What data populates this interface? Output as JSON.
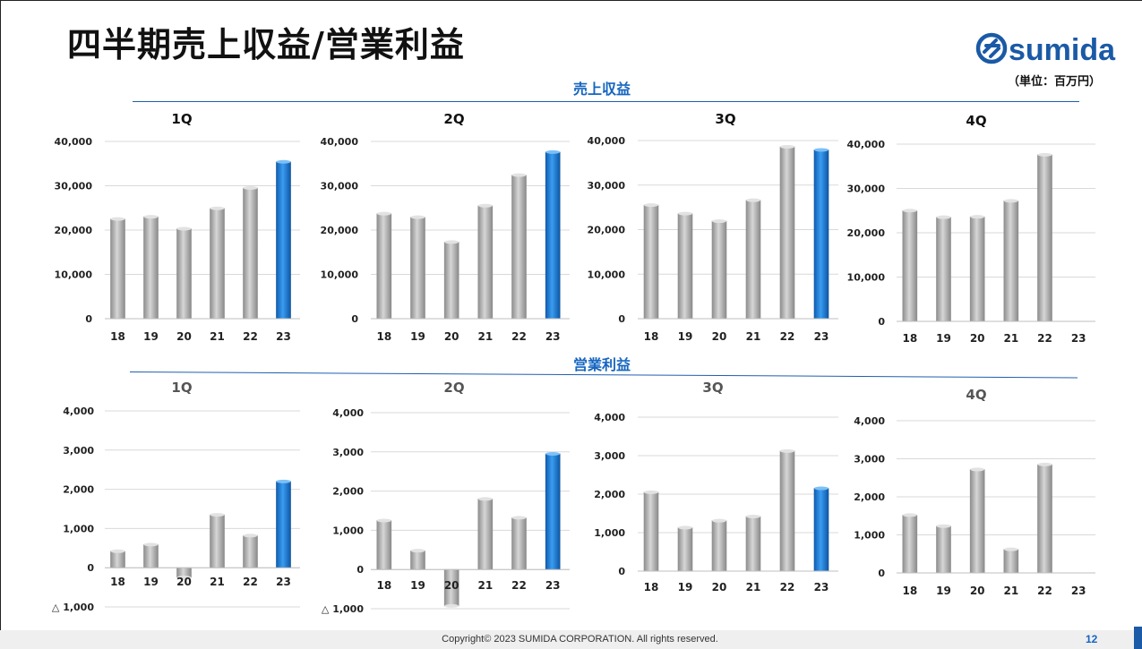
{
  "header": {
    "title": "四半期売上収益/営業利益",
    "unit": "（単位：百万円）",
    "logo_text": "sumida"
  },
  "sections": {
    "revenue_title": "売上収益",
    "op_title": "営業利益"
  },
  "footer": {
    "copyright": "Copyright© 2023 SUMIDA CORPORATION. All rights reserved.",
    "page_number": "12"
  },
  "colors": {
    "bar_gray": "#a9a9a9",
    "bar_blue": "#1a78d2",
    "accent": "#1565c0"
  },
  "chart_data": [
    {
      "type": "bar",
      "title": "1Q",
      "group": "売上収益",
      "categories": [
        "18",
        "19",
        "20",
        "21",
        "22",
        "23"
      ],
      "values": [
        22500,
        23000,
        20300,
        24900,
        29500,
        35400
      ],
      "ylim": [
        0,
        40000
      ],
      "yticks": [
        0,
        10000,
        20000,
        30000,
        40000
      ],
      "ytick_labels": [
        "0",
        "10,000",
        "20,000",
        "30,000",
        "40,000"
      ],
      "highlight_index": 5,
      "grid": true
    },
    {
      "type": "bar",
      "title": "2Q",
      "group": "売上収益",
      "categories": [
        "18",
        "19",
        "20",
        "21",
        "22",
        "23"
      ],
      "values": [
        23700,
        22900,
        17300,
        25500,
        32400,
        37600
      ],
      "ylim": [
        0,
        40000
      ],
      "yticks": [
        0,
        10000,
        20000,
        30000,
        40000
      ],
      "ytick_labels": [
        "0",
        "10,000",
        "20,000",
        "30,000",
        "40,000"
      ],
      "highlight_index": 5,
      "grid": true
    },
    {
      "type": "bar",
      "title": "3Q",
      "group": "売上収益",
      "categories": [
        "18",
        "19",
        "20",
        "21",
        "22",
        "23"
      ],
      "values": [
        25500,
        23600,
        21900,
        26600,
        38600,
        37900
      ],
      "ylim": [
        0,
        40000
      ],
      "yticks": [
        0,
        10000,
        20000,
        30000,
        40000
      ],
      "ytick_labels": [
        "0",
        "10,000",
        "20,000",
        "30,000",
        "40,000"
      ],
      "highlight_index": 5,
      "grid": true
    },
    {
      "type": "bar",
      "title": "4Q",
      "group": "売上収益",
      "categories": [
        "18",
        "19",
        "20",
        "21",
        "22",
        "23"
      ],
      "values": [
        25000,
        23500,
        23600,
        27200,
        37600,
        null
      ],
      "ylim": [
        0,
        40000
      ],
      "yticks": [
        0,
        10000,
        20000,
        30000,
        40000
      ],
      "ytick_labels": [
        "0",
        "10,000",
        "20,000",
        "30,000",
        "40,000"
      ],
      "highlight_index": null,
      "grid": true
    },
    {
      "type": "bar",
      "title": "1Q",
      "group": "営業利益",
      "categories": [
        "18",
        "19",
        "20",
        "21",
        "22",
        "23"
      ],
      "values": [
        420,
        590,
        -250,
        1350,
        820,
        2200
      ],
      "ylim": [
        -1000,
        4000
      ],
      "yticks": [
        -1000,
        0,
        1000,
        2000,
        3000,
        4000
      ],
      "ytick_labels": [
        "△ 1,000",
        "0",
        "1,000",
        "2,000",
        "3,000",
        "4,000"
      ],
      "highlight_index": 5,
      "grid": true
    },
    {
      "type": "bar",
      "title": "2Q",
      "group": "営業利益",
      "categories": [
        "18",
        "19",
        "20",
        "21",
        "22",
        "23"
      ],
      "values": [
        1250,
        480,
        -930,
        1800,
        1320,
        2950
      ],
      "ylim": [
        -1000,
        4000
      ],
      "yticks": [
        -1000,
        0,
        1000,
        2000,
        3000,
        4000
      ],
      "ytick_labels": [
        "△ 1,000",
        "0",
        "1,000",
        "2,000",
        "3,000",
        "4,000"
      ],
      "highlight_index": 5,
      "grid": true
    },
    {
      "type": "bar",
      "title": "3Q",
      "group": "営業利益",
      "categories": [
        "18",
        "19",
        "20",
        "21",
        "22",
        "23"
      ],
      "values": [
        2050,
        1130,
        1310,
        1420,
        3120,
        2150
      ],
      "ylim": [
        0,
        4000
      ],
      "yticks": [
        0,
        1000,
        2000,
        3000,
        4000
      ],
      "ytick_labels": [
        "0",
        "1,000",
        "2,000",
        "3,000",
        "4,000"
      ],
      "highlight_index": 5,
      "grid": true
    },
    {
      "type": "bar",
      "title": "4Q",
      "group": "営業利益",
      "categories": [
        "18",
        "19",
        "20",
        "21",
        "22",
        "23"
      ],
      "values": [
        1520,
        1230,
        2720,
        620,
        2850,
        null
      ],
      "ylim": [
        0,
        4000
      ],
      "yticks": [
        0,
        1000,
        2000,
        3000,
        4000
      ],
      "ytick_labels": [
        "0",
        "1,000",
        "2,000",
        "3,000",
        "4,000"
      ],
      "highlight_index": null,
      "grid": true
    }
  ]
}
